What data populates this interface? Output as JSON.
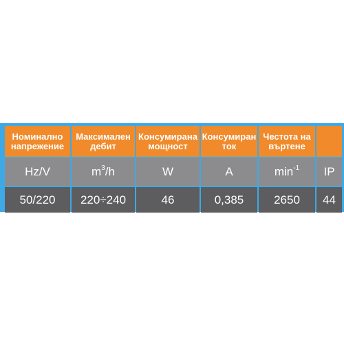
{
  "colors": {
    "frame": "#3fa9e6",
    "header": "#f08a2b",
    "units_row": "#8c8c8e",
    "values_row": "#5d5c5e"
  },
  "headers": [
    {
      "line1": "Номинално",
      "line2": "напрежение"
    },
    {
      "line1": "Максимален",
      "line2": "дебит"
    },
    {
      "line1": "Консумирана",
      "line2": "мощност"
    },
    {
      "line1": "Консумиран",
      "line2": "ток"
    },
    {
      "line1": "Честота на",
      "line2": "въртене"
    },
    {
      "line1": "",
      "line2": ""
    }
  ],
  "units": [
    {
      "base": "Hz/V",
      "sup": ""
    },
    {
      "base": "m",
      "sup": "3",
      "suffix": "/h"
    },
    {
      "base": "W",
      "sup": ""
    },
    {
      "base": "A",
      "sup": ""
    },
    {
      "base": "min",
      "sup": "-1"
    },
    {
      "base": "IP",
      "sup": ""
    }
  ],
  "values": [
    "50/220",
    "220÷240",
    "46",
    "0,385",
    "2650",
    "44"
  ]
}
